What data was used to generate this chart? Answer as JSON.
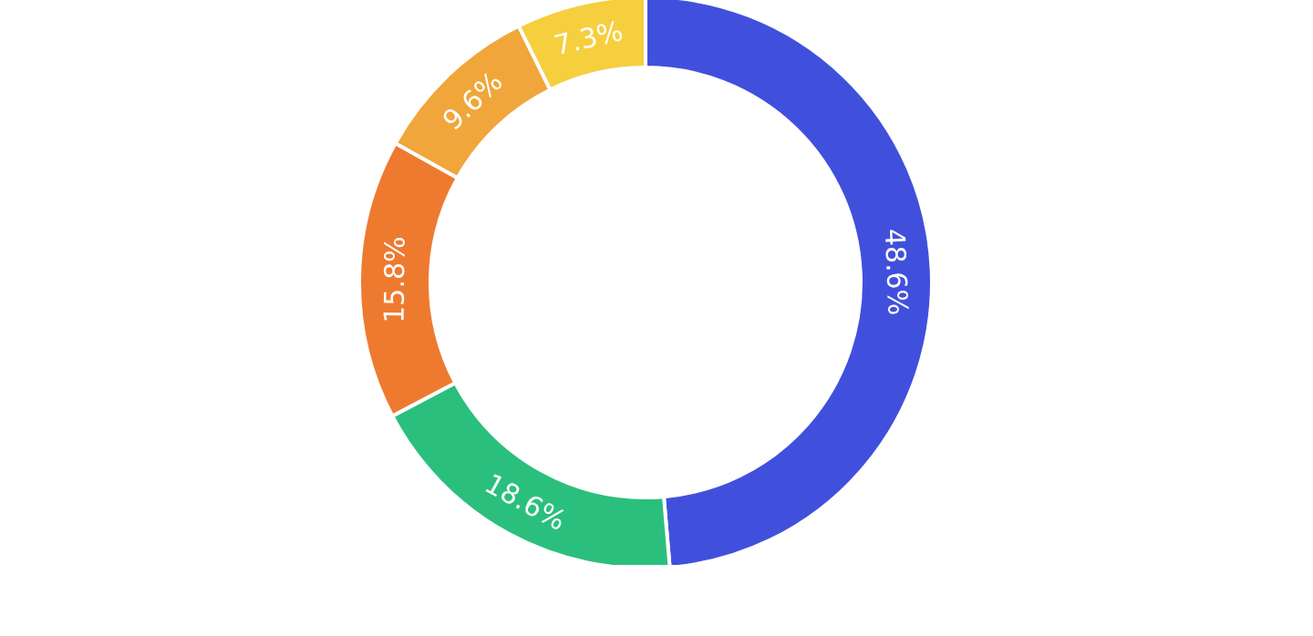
{
  "chart_data": {
    "type": "donut",
    "categories": [
      null,
      null,
      null,
      null,
      null
    ],
    "values": [
      48.6,
      18.6,
      15.8,
      9.6,
      7.3
    ],
    "colors": [
      "#4150dc",
      "#2bbf7e",
      "#ee7a30",
      "#f0a63a",
      "#f5cf3e"
    ],
    "value_labels": [
      "48.6%",
      "18.6%",
      "15.8%",
      "9.6%",
      "7.3%"
    ]
  }
}
